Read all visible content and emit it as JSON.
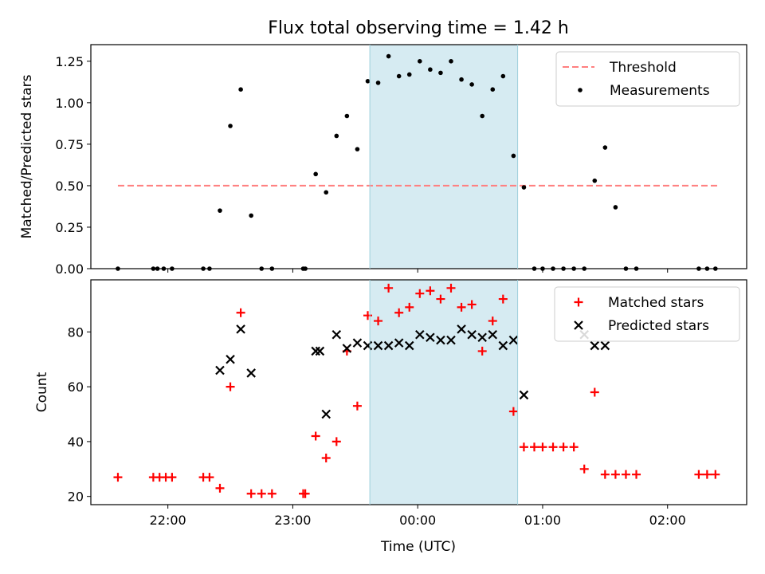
{
  "title": "Flux total observing time = 1.42 h",
  "xlabel": "Time (UTC)",
  "x_tick_labels": [
    "22:00",
    "23:00",
    "00:00",
    "01:00",
    "02:00"
  ],
  "chart_data": [
    {
      "type": "scatter",
      "ylabel": "Matched/Predicted stars",
      "ylim": [
        0,
        1.35
      ],
      "y_ticks": [
        "0.00",
        "0.25",
        "0.50",
        "0.75",
        "1.00",
        "1.25"
      ],
      "shaded_span": {
        "x": [
          "23:37",
          "00:48"
        ],
        "color": "#add8e6"
      },
      "legend_position": "top-right",
      "series": [
        {
          "name": "Threshold",
          "kind": "dashed-line",
          "color": "#ff7f7f",
          "x": [
            "21:36",
            "02:24"
          ],
          "y": [
            0.5,
            0.5
          ]
        },
        {
          "name": "Measurements",
          "kind": "points",
          "color": "#000000",
          "x": [
            "21:36",
            "21:53",
            "21:55",
            "21:58",
            "22:02",
            "22:17",
            "22:20",
            "22:25",
            "22:30",
            "22:35",
            "22:40",
            "22:45",
            "22:50",
            "23:05",
            "23:06",
            "23:11",
            "23:16",
            "23:21",
            "23:26",
            "23:31",
            "23:36",
            "23:41",
            "23:46",
            "23:51",
            "23:56",
            "00:01",
            "00:06",
            "00:11",
            "00:16",
            "00:21",
            "00:26",
            "00:31",
            "00:36",
            "00:41",
            "00:46",
            "00:51",
            "00:56",
            "01:00",
            "01:05",
            "01:10",
            "01:15",
            "01:20",
            "01:25",
            "01:30",
            "01:35",
            "01:40",
            "01:45",
            "02:15",
            "02:19",
            "02:23"
          ],
          "y": [
            0,
            0,
            0,
            0,
            0,
            0,
            0,
            0.35,
            0.86,
            1.08,
            0.32,
            0,
            0,
            0,
            0,
            0.57,
            0.46,
            0.8,
            0.92,
            0.72,
            1.13,
            1.12,
            1.28,
            1.16,
            1.17,
            1.25,
            1.2,
            1.18,
            1.25,
            1.14,
            1.11,
            0.92,
            1.08,
            1.16,
            0.68,
            0.49,
            0,
            0,
            0,
            0,
            0,
            0,
            0.53,
            0.73,
            0.37,
            0,
            0,
            0,
            0,
            0
          ]
        }
      ]
    },
    {
      "type": "scatter",
      "ylabel": "Count",
      "ylim": [
        17,
        99
      ],
      "y_ticks": [
        "20",
        "40",
        "60",
        "80"
      ],
      "shaded_span": {
        "x": [
          "23:37",
          "00:48"
        ],
        "color": "#add8e6"
      },
      "legend_position": "top-right",
      "series": [
        {
          "name": "Matched stars",
          "marker": "plus",
          "color": "#ff0000",
          "x": [
            "21:36",
            "21:53",
            "21:56",
            "21:59",
            "22:02",
            "22:17",
            "22:20",
            "22:25",
            "22:30",
            "22:35",
            "22:40",
            "22:45",
            "22:50",
            "23:05",
            "23:06",
            "23:11",
            "23:16",
            "23:21",
            "23:26",
            "23:31",
            "23:36",
            "23:41",
            "23:46",
            "23:51",
            "23:56",
            "00:01",
            "00:06",
            "00:11",
            "00:16",
            "00:21",
            "00:26",
            "00:31",
            "00:36",
            "00:41",
            "00:46",
            "00:51",
            "00:56",
            "01:00",
            "01:05",
            "01:10",
            "01:15",
            "01:20",
            "01:25",
            "01:30",
            "01:35",
            "01:40",
            "01:45",
            "02:15",
            "02:19",
            "02:23"
          ],
          "y": [
            27,
            27,
            27,
            27,
            27,
            27,
            27,
            23,
            60,
            87,
            21,
            21,
            21,
            21,
            21,
            42,
            34,
            40,
            73,
            53,
            86,
            84,
            96,
            87,
            89,
            94,
            95,
            92,
            96,
            89,
            90,
            73,
            84,
            92,
            51,
            38,
            38,
            38,
            38,
            38,
            38,
            30,
            58,
            28,
            28,
            28,
            28,
            28,
            28,
            28
          ]
        },
        {
          "name": "Predicted stars",
          "marker": "x",
          "color": "#000000",
          "x": [
            "22:25",
            "22:30",
            "22:35",
            "22:40",
            "23:11",
            "23:13",
            "23:16",
            "23:21",
            "23:26",
            "23:31",
            "23:36",
            "23:41",
            "23:46",
            "23:51",
            "23:56",
            "00:01",
            "00:06",
            "00:11",
            "00:16",
            "00:21",
            "00:26",
            "00:31",
            "00:36",
            "00:41",
            "00:46",
            "00:51",
            "01:20",
            "01:25",
            "01:30"
          ],
          "y": [
            66,
            70,
            81,
            65,
            73,
            73,
            50,
            79,
            74,
            76,
            75,
            75,
            75,
            76,
            75,
            79,
            78,
            77,
            77,
            81,
            79,
            78,
            79,
            75,
            77,
            57,
            79,
            75,
            75
          ]
        }
      ]
    }
  ]
}
